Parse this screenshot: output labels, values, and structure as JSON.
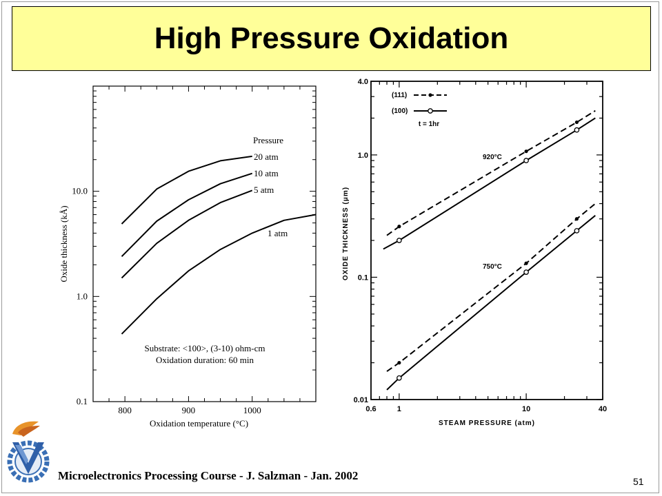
{
  "slide": {
    "title": "High Pressure Oxidation",
    "footer": "Microelectronics Processing Course - J. Salzman - Jan. 2002",
    "page_number": "51",
    "logo_icon": "technion-logo-icon",
    "title_bg_color": "#ffff99"
  },
  "chart_data": [
    {
      "type": "line",
      "xlabel": "Oxidation temperature (°C)",
      "ylabel": "Oxide thickness (kÅ)",
      "xlim": [
        750,
        1100
      ],
      "ylim": [
        0.1,
        100
      ],
      "y_scale": "log",
      "x_ticks": [
        800,
        900,
        1000
      ],
      "x_tick_labels": [
        "800",
        "900",
        "1000"
      ],
      "y_ticks": [
        0.1,
        1.0,
        10.0
      ],
      "y_tick_labels": [
        "0.1",
        "1.0",
        "10.0"
      ],
      "legend_title": "Pressure",
      "annotation_lines": [
        "Substrate: <100>, (3-10) ohm-cm",
        "Oxidation duration: 60 min"
      ],
      "series": [
        {
          "name": "20 atm",
          "x": [
            795,
            850,
            900,
            950,
            1000
          ],
          "y": [
            4.9,
            10.5,
            15.5,
            19.5,
            21.5
          ]
        },
        {
          "name": "10 atm",
          "x": [
            795,
            850,
            900,
            950,
            1000
          ],
          "y": [
            2.4,
            5.2,
            8.3,
            11.8,
            14.8
          ]
        },
        {
          "name": "5 atm",
          "x": [
            795,
            850,
            900,
            950,
            1000
          ],
          "y": [
            1.5,
            3.2,
            5.3,
            7.8,
            10.2
          ]
        },
        {
          "name": "1 atm",
          "x": [
            795,
            850,
            900,
            950,
            1000,
            1050,
            1100
          ],
          "y": [
            0.44,
            0.95,
            1.75,
            2.8,
            4.0,
            5.3,
            6.0
          ]
        }
      ]
    },
    {
      "type": "line",
      "xlabel": "STEAM PRESSURE (atm)",
      "ylabel": "OXIDE THICKNESS (μm)",
      "x_scale": "log",
      "y_scale": "log",
      "xlim": [
        0.6,
        40
      ],
      "ylim": [
        0.01,
        4.0
      ],
      "x_ticks": [
        0.6,
        1,
        10,
        40
      ],
      "x_tick_labels": [
        "0.6",
        "1",
        "10",
        "40"
      ],
      "y_ticks": [
        0.01,
        0.1,
        1.0,
        4.0
      ],
      "y_tick_labels": [
        "0.01",
        "0.1",
        "1.0",
        "4.0"
      ],
      "legend": [
        {
          "name": "(111)",
          "style": "dashed"
        },
        {
          "name": "(100)",
          "style": "solid"
        }
      ],
      "legend_note": "t = 1hr",
      "annotations": [
        "920°C",
        "750°C"
      ],
      "series": [
        {
          "name": "(111) 920°C",
          "x": [
            0.8,
            1,
            10,
            25,
            35
          ],
          "y": [
            0.22,
            0.26,
            1.07,
            1.85,
            2.3
          ]
        },
        {
          "name": "(100) 920°C",
          "x": [
            0.75,
            1,
            10,
            25,
            35
          ],
          "y": [
            0.17,
            0.2,
            0.9,
            1.6,
            2.0
          ]
        },
        {
          "name": "(111) 750°C",
          "x": [
            0.8,
            1,
            10,
            25,
            35
          ],
          "y": [
            0.017,
            0.02,
            0.13,
            0.3,
            0.4
          ]
        },
        {
          "name": "(100) 750°C",
          "x": [
            0.8,
            1,
            10,
            25,
            35
          ],
          "y": [
            0.012,
            0.015,
            0.11,
            0.24,
            0.32
          ]
        }
      ],
      "markers": [
        {
          "series": "(111) 920°C",
          "x": [
            1,
            10,
            25
          ]
        },
        {
          "series": "(100) 920°C",
          "x": [
            1,
            10,
            25
          ]
        },
        {
          "series": "(111) 750°C",
          "x": [
            1,
            10,
            25
          ]
        },
        {
          "series": "(100) 750°C",
          "x": [
            1,
            10,
            25
          ]
        }
      ]
    }
  ]
}
